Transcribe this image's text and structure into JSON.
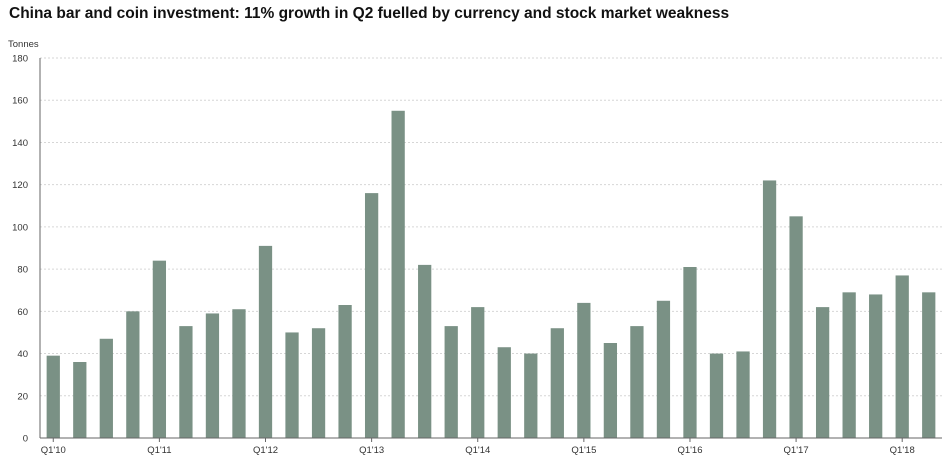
{
  "chart_data": {
    "type": "bar",
    "title": "China bar and coin investment: 11% growth in Q2 fuelled by currency and stock market weakness",
    "unit_label": "Tonnes",
    "ylim": [
      0,
      180
    ],
    "y_ticks": [
      0,
      20,
      40,
      60,
      80,
      100,
      120,
      140,
      160,
      180
    ],
    "grid": true,
    "bar_color": "#7a9185",
    "x_tick_labels": [
      {
        "index": 0,
        "label": "Q1'10"
      },
      {
        "index": 4,
        "label": "Q1'11"
      },
      {
        "index": 8,
        "label": "Q1'12"
      },
      {
        "index": 12,
        "label": "Q1'13"
      },
      {
        "index": 16,
        "label": "Q1'14"
      },
      {
        "index": 20,
        "label": "Q1'15"
      },
      {
        "index": 24,
        "label": "Q1'16"
      },
      {
        "index": 28,
        "label": "Q1'17"
      },
      {
        "index": 32,
        "label": "Q1'18"
      }
    ],
    "categories": [
      "Q1'10",
      "Q2'10",
      "Q3'10",
      "Q4'10",
      "Q1'11",
      "Q2'11",
      "Q3'11",
      "Q4'11",
      "Q1'12",
      "Q2'12",
      "Q3'12",
      "Q4'12",
      "Q1'13",
      "Q2'13",
      "Q3'13",
      "Q4'13",
      "Q1'14",
      "Q2'14",
      "Q3'14",
      "Q4'14",
      "Q1'15",
      "Q2'15",
      "Q3'15",
      "Q4'15",
      "Q1'16",
      "Q2'16",
      "Q3'16",
      "Q4'16",
      "Q1'17",
      "Q2'17",
      "Q3'17",
      "Q4'17",
      "Q1'18",
      "Q2'18"
    ],
    "values": [
      39,
      36,
      47,
      60,
      84,
      53,
      59,
      61,
      91,
      50,
      52,
      63,
      116,
      155,
      82,
      53,
      62,
      43,
      40,
      52,
      64,
      45,
      53,
      65,
      81,
      40,
      41,
      122,
      105,
      62,
      69,
      68,
      77,
      69
    ]
  }
}
